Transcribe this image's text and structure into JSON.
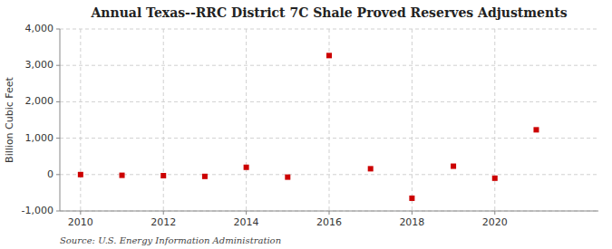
{
  "chart_data": {
    "type": "scatter",
    "title": "Annual Texas--RRC District 7C Shale Proved Reserves Adjustments",
    "ylabel": "Billion Cubic Feet",
    "source": "Source: U.S. Energy Information Administration",
    "x": [
      2010,
      2011,
      2012,
      2013,
      2014,
      2015,
      2016,
      2017,
      2018,
      2019,
      2020,
      2021
    ],
    "values": [
      0,
      -20,
      -30,
      -50,
      200,
      -70,
      3270,
      160,
      -650,
      230,
      -100,
      1230
    ],
    "color": "#cc0000",
    "marker": "square",
    "xlim": [
      2009.5,
      2022.5
    ],
    "ylim": [
      -1000,
      4000
    ],
    "xticks": [
      2010,
      2012,
      2014,
      2016,
      2018,
      2020
    ],
    "yticks": [
      {
        "value": -1000,
        "label": "-1,000"
      },
      0,
      {
        "value": 1000,
        "label": "1,000"
      },
      {
        "value": 2000,
        "label": "2,000"
      },
      {
        "value": 3000,
        "label": "3,000"
      },
      {
        "value": 4000,
        "label": "4,000"
      }
    ],
    "grid": true
  }
}
